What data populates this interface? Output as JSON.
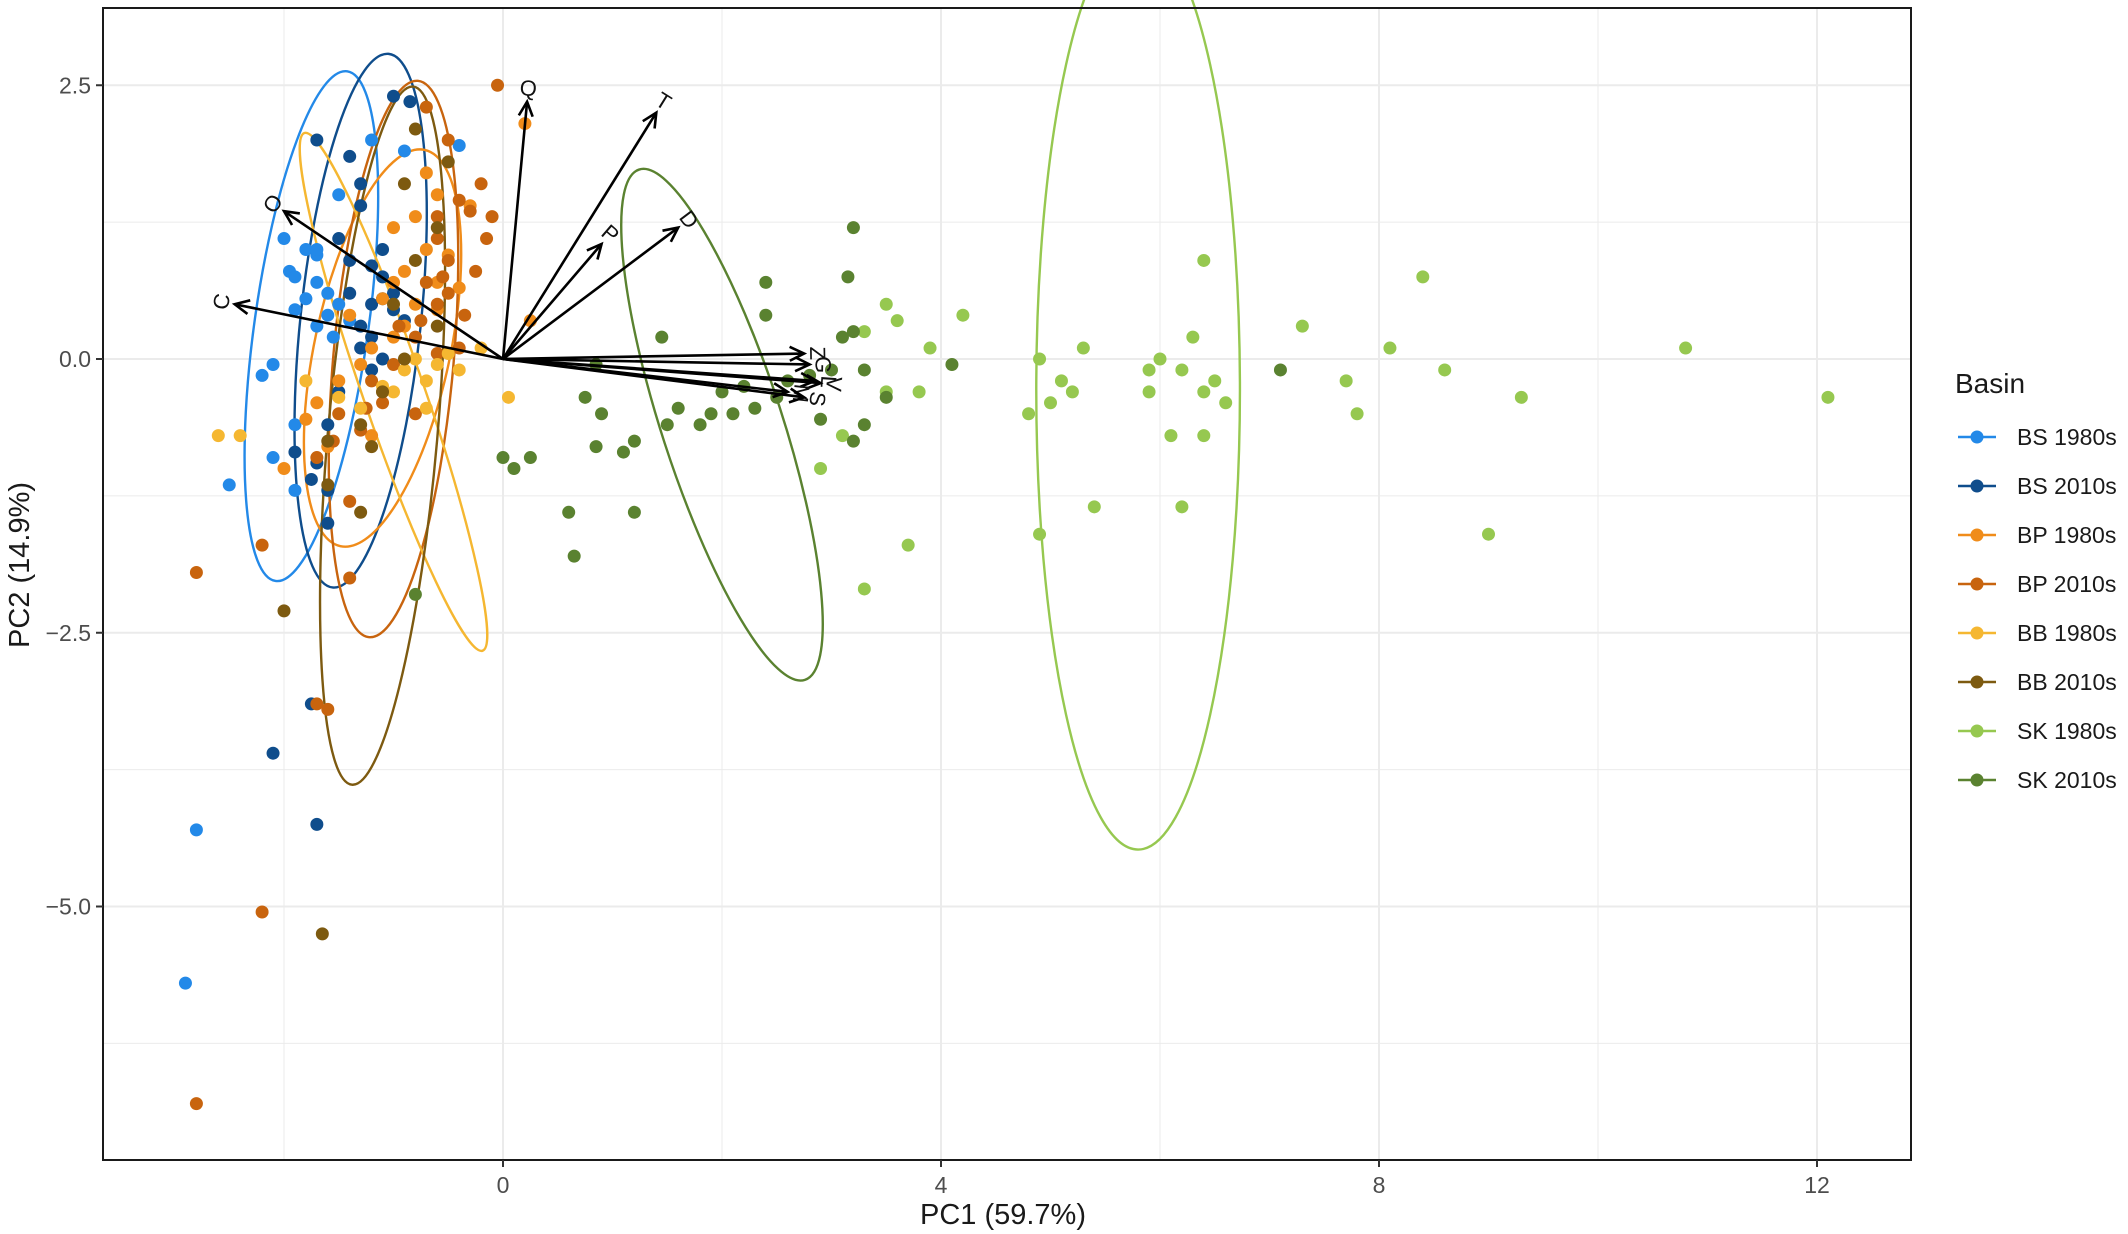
{
  "chart_data": {
    "type": "scatter",
    "title": "",
    "xlabel": "PC1 (59.7%)",
    "ylabel": "PC2 (14.9%)",
    "xlim": [
      -3.6,
      12.8
    ],
    "ylim": [
      -7.2,
      2.8
    ],
    "x_ticks": [
      0,
      4,
      8,
      12
    ],
    "x_tick_labels": [
      "0",
      "4",
      "8",
      "12"
    ],
    "y_ticks": [
      2.5,
      0,
      -2.5,
      -5
    ],
    "y_tick_labels": [
      "2.5",
      "0.0",
      "−2.5",
      "−5.0"
    ],
    "grid": true,
    "legend_title": "Basin",
    "legend_position": "right",
    "series": [
      {
        "name": "BS 1980s",
        "color": "#2389e8",
        "points": [
          [
            -2.0,
            1.1
          ],
          [
            -1.8,
            1.0
          ],
          [
            -1.7,
            0.95
          ],
          [
            -1.95,
            0.8
          ],
          [
            -1.9,
            0.75
          ],
          [
            -1.7,
            0.7
          ],
          [
            -1.6,
            0.6
          ],
          [
            -1.8,
            0.55
          ],
          [
            -1.9,
            0.45
          ],
          [
            -1.5,
            0.5
          ],
          [
            -1.6,
            0.4
          ],
          [
            -1.7,
            0.3
          ],
          [
            -1.4,
            0.35
          ],
          [
            -1.55,
            0.2
          ],
          [
            -2.1,
            -0.05
          ],
          [
            -2.2,
            -0.15
          ],
          [
            -1.9,
            -0.6
          ],
          [
            -2.1,
            -0.9
          ],
          [
            -1.9,
            -1.2
          ],
          [
            -2.5,
            -1.15
          ],
          [
            -0.4,
            1.95
          ],
          [
            -0.9,
            1.9
          ],
          [
            -1.2,
            2.0
          ],
          [
            -1.5,
            1.5
          ],
          [
            -2.8,
            -4.3
          ],
          [
            -2.9,
            -5.7
          ],
          [
            -1.7,
            1.0
          ]
        ]
      },
      {
        "name": "BS 2010s",
        "color": "#0f4d8c",
        "points": [
          [
            -1.0,
            2.4
          ],
          [
            -0.85,
            2.35
          ],
          [
            -1.7,
            2.0
          ],
          [
            -1.4,
            1.85
          ],
          [
            -1.3,
            1.6
          ],
          [
            -1.3,
            1.4
          ],
          [
            -1.5,
            1.1
          ],
          [
            -1.4,
            0.9
          ],
          [
            -1.2,
            0.85
          ],
          [
            -1.1,
            0.75
          ],
          [
            -1.0,
            0.6
          ],
          [
            -1.1,
            0.55
          ],
          [
            -1.2,
            0.5
          ],
          [
            -1.0,
            0.45
          ],
          [
            -1.4,
            0.6
          ],
          [
            -0.9,
            0.35
          ],
          [
            -1.3,
            0.3
          ],
          [
            -1.2,
            0.2
          ],
          [
            -1.3,
            0.1
          ],
          [
            -1.1,
            0.0
          ],
          [
            -1.2,
            -0.1
          ],
          [
            -1.5,
            -0.3
          ],
          [
            -1.6,
            -0.6
          ],
          [
            -1.9,
            -0.85
          ],
          [
            -1.7,
            -0.95
          ],
          [
            -1.75,
            -1.1
          ],
          [
            -1.6,
            -1.2
          ],
          [
            -1.6,
            -1.5
          ],
          [
            -2.1,
            -3.6
          ],
          [
            -1.75,
            -3.15
          ],
          [
            -1.7,
            -4.25
          ],
          [
            -1.1,
            1.0
          ]
        ]
      },
      {
        "name": "BP 1980s",
        "color": "#f08c1a",
        "points": [
          [
            0.2,
            2.15
          ],
          [
            -0.7,
            1.7
          ],
          [
            -0.6,
            1.5
          ],
          [
            -0.8,
            1.3
          ],
          [
            -1.0,
            1.2
          ],
          [
            -0.7,
            1.0
          ],
          [
            -0.5,
            0.95
          ],
          [
            -0.9,
            0.8
          ],
          [
            -0.6,
            0.7
          ],
          [
            -0.4,
            0.65
          ],
          [
            -1.1,
            0.55
          ],
          [
            -0.8,
            0.5
          ],
          [
            -0.9,
            0.3
          ],
          [
            -1.0,
            0.2
          ],
          [
            -1.2,
            0.1
          ],
          [
            -1.3,
            -0.05
          ],
          [
            -1.5,
            -0.2
          ],
          [
            -1.7,
            -0.4
          ],
          [
            -1.8,
            -0.55
          ],
          [
            -2.0,
            -1.0
          ],
          [
            -1.6,
            -0.8
          ],
          [
            -1.2,
            -0.7
          ],
          [
            -1.4,
            0.4
          ],
          [
            -0.3,
            1.4
          ],
          [
            0.25,
            0.35
          ],
          [
            -0.6,
            0.45
          ],
          [
            -1.0,
            0.7
          ]
        ]
      },
      {
        "name": "BP 2010s",
        "color": "#c8640e",
        "points": [
          [
            -0.05,
            2.5
          ],
          [
            -0.7,
            2.3
          ],
          [
            -0.5,
            2.0
          ],
          [
            -0.2,
            1.6
          ],
          [
            -0.4,
            1.45
          ],
          [
            -0.6,
            1.3
          ],
          [
            -0.3,
            1.35
          ],
          [
            -0.1,
            1.3
          ],
          [
            -0.15,
            1.1
          ],
          [
            -0.6,
            1.1
          ],
          [
            -0.5,
            0.9
          ],
          [
            -0.25,
            0.8
          ],
          [
            -0.7,
            0.7
          ],
          [
            -0.5,
            0.6
          ],
          [
            -0.6,
            0.5
          ],
          [
            -0.35,
            0.4
          ],
          [
            -0.75,
            0.35
          ],
          [
            -0.95,
            0.3
          ],
          [
            -0.8,
            0.2
          ],
          [
            -0.4,
            0.1
          ],
          [
            -0.6,
            0.05
          ],
          [
            -1.0,
            -0.05
          ],
          [
            -1.2,
            -0.2
          ],
          [
            -1.1,
            -0.3
          ],
          [
            -1.25,
            -0.45
          ],
          [
            -1.5,
            -0.5
          ],
          [
            -1.3,
            -0.65
          ],
          [
            -1.55,
            -0.75
          ],
          [
            -1.7,
            -0.9
          ],
          [
            -1.1,
            -0.4
          ],
          [
            -0.8,
            -0.5
          ],
          [
            -1.4,
            -1.3
          ],
          [
            -2.2,
            -1.7
          ],
          [
            -2.8,
            -1.95
          ],
          [
            -1.7,
            -3.15
          ],
          [
            -1.6,
            -3.2
          ],
          [
            -2.2,
            -5.05
          ],
          [
            -2.8,
            -6.8
          ],
          [
            -1.4,
            -2.0
          ],
          [
            -0.55,
            0.75
          ]
        ]
      },
      {
        "name": "BB 1980s",
        "color": "#f5b731",
        "points": [
          [
            -2.4,
            -0.7
          ],
          [
            -2.6,
            -0.7
          ],
          [
            -1.8,
            -0.2
          ],
          [
            -1.5,
            -0.35
          ],
          [
            -1.3,
            -0.45
          ],
          [
            -1.0,
            -0.3
          ],
          [
            -0.7,
            -0.2
          ],
          [
            -0.9,
            -0.1
          ],
          [
            -0.6,
            -0.05
          ],
          [
            -0.5,
            0.05
          ],
          [
            -0.8,
            0.0
          ],
          [
            -0.4,
            -0.1
          ],
          [
            -0.2,
            0.1
          ],
          [
            0.05,
            -0.35
          ],
          [
            -1.1,
            -0.25
          ],
          [
            -0.7,
            -0.45
          ]
        ]
      },
      {
        "name": "BB 2010s",
        "color": "#7d5a10",
        "points": [
          [
            -0.8,
            2.1
          ],
          [
            -0.5,
            1.8
          ],
          [
            -0.9,
            1.6
          ],
          [
            -0.6,
            1.2
          ],
          [
            -0.8,
            0.9
          ],
          [
            -1.0,
            0.5
          ],
          [
            -0.6,
            0.3
          ],
          [
            -0.9,
            0.0
          ],
          [
            -1.1,
            -0.3
          ],
          [
            -1.3,
            -0.6
          ],
          [
            -1.6,
            -0.75
          ],
          [
            -1.6,
            -1.15
          ],
          [
            -1.3,
            -1.4
          ],
          [
            -2.0,
            -2.3
          ],
          [
            -1.65,
            -5.25
          ],
          [
            -1.2,
            -0.8
          ]
        ]
      },
      {
        "name": "SK 1980s",
        "color": "#96c850",
        "points": [
          [
            6.4,
            0.9
          ],
          [
            8.4,
            0.75
          ],
          [
            7.3,
            0.3
          ],
          [
            6.3,
            0.2
          ],
          [
            6.0,
            0.0
          ],
          [
            5.9,
            -0.1
          ],
          [
            6.5,
            -0.2
          ],
          [
            6.4,
            -0.3
          ],
          [
            6.6,
            -0.4
          ],
          [
            5.3,
            0.1
          ],
          [
            4.9,
            0.0
          ],
          [
            5.2,
            -0.3
          ],
          [
            5.1,
            -0.2
          ],
          [
            5.0,
            -0.4
          ],
          [
            4.8,
            -0.5
          ],
          [
            7.7,
            -0.2
          ],
          [
            7.8,
            -0.5
          ],
          [
            8.6,
            -0.1
          ],
          [
            9.3,
            -0.35
          ],
          [
            10.8,
            0.1
          ],
          [
            12.1,
            -0.35
          ],
          [
            5.4,
            -1.35
          ],
          [
            6.2,
            -1.35
          ],
          [
            4.9,
            -1.6
          ],
          [
            3.7,
            -1.7
          ],
          [
            3.3,
            -2.1
          ],
          [
            9.0,
            -1.6
          ],
          [
            6.1,
            -0.7
          ],
          [
            6.4,
            -0.7
          ],
          [
            3.5,
            0.5
          ],
          [
            3.6,
            0.35
          ],
          [
            4.2,
            0.4
          ],
          [
            3.9,
            0.1
          ],
          [
            3.3,
            0.25
          ],
          [
            3.5,
            -0.3
          ],
          [
            3.1,
            -0.7
          ],
          [
            2.9,
            -1.0
          ],
          [
            3.8,
            -0.3
          ],
          [
            5.9,
            -0.3
          ],
          [
            8.1,
            0.1
          ],
          [
            6.2,
            -0.1
          ]
        ]
      },
      {
        "name": "SK 2010s",
        "color": "#5a8230",
        "points": [
          [
            3.2,
            1.2
          ],
          [
            3.15,
            0.75
          ],
          [
            2.4,
            0.7
          ],
          [
            2.4,
            0.4
          ],
          [
            1.45,
            0.2
          ],
          [
            0.85,
            -0.05
          ],
          [
            0.9,
            -0.5
          ],
          [
            0.85,
            -0.8
          ],
          [
            1.1,
            -0.85
          ],
          [
            1.2,
            -0.75
          ],
          [
            1.5,
            -0.6
          ],
          [
            1.6,
            -0.45
          ],
          [
            1.9,
            -0.5
          ],
          [
            2.1,
            -0.5
          ],
          [
            2.3,
            -0.45
          ],
          [
            2.5,
            -0.35
          ],
          [
            2.2,
            -0.25
          ],
          [
            2.6,
            -0.2
          ],
          [
            2.8,
            -0.15
          ],
          [
            3.0,
            -0.1
          ],
          [
            3.3,
            -0.1
          ],
          [
            3.2,
            0.25
          ],
          [
            3.5,
            -0.35
          ],
          [
            3.3,
            -0.6
          ],
          [
            3.2,
            -0.75
          ],
          [
            4.1,
            -0.05
          ],
          [
            7.1,
            -0.1
          ],
          [
            0.6,
            -1.4
          ],
          [
            0.65,
            -1.8
          ],
          [
            1.2,
            -1.4
          ],
          [
            0.0,
            -0.9
          ],
          [
            0.1,
            -1.0
          ],
          [
            0.25,
            -0.9
          ],
          [
            0.75,
            -0.35
          ],
          [
            1.8,
            -0.6
          ],
          [
            2.0,
            -0.3
          ],
          [
            -0.8,
            -2.15
          ],
          [
            2.9,
            -0.55
          ],
          [
            3.1,
            0.2
          ]
        ]
      }
    ],
    "ellipses": [
      {
        "series": "BS 1980s",
        "cx": -1.75,
        "cy": 0.3,
        "rx": 0.52,
        "ry": 2.35,
        "angle": 98
      },
      {
        "series": "BS 2010s",
        "cx": -1.3,
        "cy": 0.35,
        "rx": 0.55,
        "ry": 2.45,
        "angle": 96
      },
      {
        "series": "BP 1980s",
        "cx": -1.1,
        "cy": 0.1,
        "rx": 0.62,
        "ry": 1.85,
        "angle": 102
      },
      {
        "series": "BP 2010s",
        "cx": -1.0,
        "cy": 0.0,
        "rx": 0.55,
        "ry": 2.55,
        "angle": 95
      },
      {
        "series": "BB 1980s",
        "cx": -1.0,
        "cy": -0.3,
        "rx": 0.28,
        "ry": 2.5,
        "angle": 71
      },
      {
        "series": "BB 2010s",
        "cx": -1.1,
        "cy": -0.7,
        "rx": 0.5,
        "ry": 3.2,
        "angle": 95
      },
      {
        "series": "SK 1980s",
        "cx": 5.8,
        "cy": -0.28,
        "rx": 0.93,
        "ry": 4.2,
        "angle": 90
      },
      {
        "series": "SK 2010s",
        "cx": 2.0,
        "cy": -0.6,
        "rx": 0.55,
        "ry": 2.45,
        "angle": 72
      }
    ],
    "loadings": [
      {
        "label": "Q",
        "x": 0.22,
        "y": 2.35
      },
      {
        "label": "T",
        "x": 1.4,
        "y": 2.25
      },
      {
        "label": "D",
        "x": 1.6,
        "y": 1.2
      },
      {
        "label": "P",
        "x": 0.9,
        "y": 1.05
      },
      {
        "label": "O",
        "x": -2.0,
        "y": 1.35
      },
      {
        "label": "C",
        "x": -2.45,
        "y": 0.5
      },
      {
        "label": "Z",
        "x": 2.75,
        "y": 0.05
      },
      {
        "label": "G",
        "x": 2.8,
        "y": -0.05
      },
      {
        "label": "L",
        "x": 2.85,
        "y": -0.2
      },
      {
        "label": "V",
        "x": 2.9,
        "y": -0.22
      },
      {
        "label": "M",
        "x": 2.6,
        "y": -0.3
      },
      {
        "label": "S",
        "x": 2.75,
        "y": -0.35
      }
    ]
  }
}
